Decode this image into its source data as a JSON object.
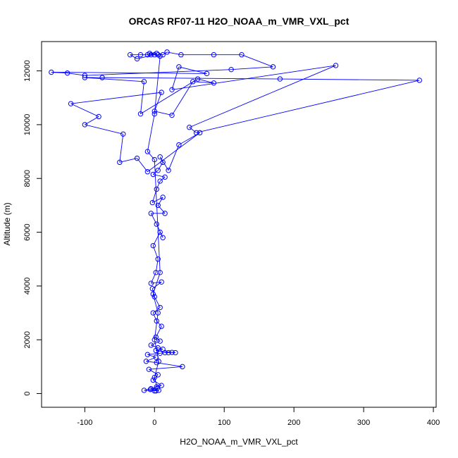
{
  "chart_data": {
    "type": "line",
    "title": "ORCAS RF07-11 H2O_NOAA_m_VMR_VXL_pct",
    "xlabel": "H2O_NOAA_m_VMR_VXL_pct",
    "ylabel": "Altitude (m)",
    "xlim": [
      -162,
      404
    ],
    "ylim": [
      -510,
      13090
    ],
    "x_ticks": [
      -100,
      0,
      100,
      200,
      300,
      400
    ],
    "x_tick_labels": [
      "-100",
      "0",
      "100",
      "200",
      "300",
      "400"
    ],
    "y_ticks": [
      0,
      2000,
      4000,
      6000,
      8000,
      10000,
      12000
    ],
    "y_tick_labels": [
      "0",
      "2000",
      "4000",
      "6000",
      "8000",
      "10000",
      "12000"
    ],
    "grid": false,
    "legend": "none",
    "marker": "open-circle",
    "colors": {
      "series": "#0000ff",
      "axes": "#000000",
      "background": "#ffffff"
    },
    "series": [
      {
        "points": [
          [
            2,
            100
          ],
          [
            -15,
            120
          ],
          [
            -5,
            180
          ],
          [
            3,
            250
          ],
          [
            10,
            300
          ],
          [
            -2,
            500
          ],
          [
            5,
            700
          ],
          [
            -8,
            900
          ],
          [
            40,
            1000
          ],
          [
            3,
            1150
          ],
          [
            -12,
            1200
          ],
          [
            2,
            1350
          ],
          [
            -10,
            1450
          ],
          [
            8,
            1500
          ],
          [
            15,
            1520
          ],
          [
            20,
            1520
          ],
          [
            25,
            1530
          ],
          [
            30,
            1520
          ],
          [
            2,
            1600
          ],
          [
            12,
            1650
          ],
          [
            5,
            1700
          ],
          [
            -5,
            1800
          ],
          [
            8,
            1950
          ],
          [
            2,
            2100
          ],
          [
            10,
            2500
          ],
          [
            3,
            2700
          ],
          [
            -2,
            3000
          ],
          [
            8,
            3200
          ],
          [
            0,
            3600
          ],
          [
            -3,
            3900
          ],
          [
            10,
            4150
          ],
          [
            -5,
            4100
          ],
          [
            2,
            4500
          ],
          [
            5,
            5000
          ],
          [
            -2,
            5500
          ],
          [
            8,
            6000
          ],
          [
            12,
            5800
          ],
          [
            3,
            6300
          ],
          [
            -5,
            6700
          ],
          [
            15,
            6700
          ],
          [
            5,
            7000
          ],
          [
            12,
            7300
          ],
          [
            -3,
            7100
          ],
          [
            3,
            7600
          ],
          [
            8,
            7900
          ],
          [
            15,
            8050
          ],
          [
            -2,
            8150
          ],
          [
            5,
            8300
          ],
          [
            12,
            8600
          ],
          [
            8,
            8800
          ],
          [
            20,
            8300
          ],
          [
            35,
            9250
          ],
          [
            65,
            9700
          ],
          [
            -10,
            8250
          ],
          [
            -25,
            8750
          ],
          [
            -50,
            8600
          ],
          [
            -45,
            9650
          ],
          [
            -100,
            10000
          ],
          [
            -80,
            10300
          ],
          [
            -120,
            10780
          ],
          [
            10,
            11200
          ],
          [
            0,
            10500
          ],
          [
            25,
            10350
          ],
          [
            55,
            11600
          ],
          [
            85,
            11550
          ],
          [
            62,
            11700
          ],
          [
            -20,
            10400
          ],
          [
            -15,
            11600
          ],
          [
            -100,
            11750
          ],
          [
            -75,
            11750
          ],
          [
            180,
            11700
          ],
          [
            380,
            11650
          ],
          [
            60,
            9700
          ],
          [
            50,
            9900
          ],
          [
            260,
            12200
          ],
          [
            25,
            11300
          ],
          [
            35,
            12150
          ],
          [
            75,
            11900
          ],
          [
            -148,
            11950
          ],
          [
            -125,
            11920
          ],
          [
            -100,
            11830
          ],
          [
            110,
            12050
          ],
          [
            170,
            12150
          ],
          [
            125,
            12600
          ],
          [
            85,
            12600
          ],
          [
            38,
            12600
          ],
          [
            18,
            12700
          ],
          [
            12,
            12600
          ],
          [
            5,
            12600
          ],
          [
            -5,
            12600
          ],
          [
            -10,
            12600
          ],
          [
            -20,
            12600
          ],
          [
            -35,
            12600
          ],
          [
            -25,
            12450
          ],
          [
            0,
            12600
          ],
          [
            3,
            12650
          ],
          [
            -7,
            12650
          ],
          [
            8,
            12550
          ],
          [
            0,
            10400
          ],
          [
            -10,
            9000
          ],
          [
            0,
            8700
          ],
          [
            8,
            4500
          ],
          [
            -2,
            3700
          ],
          [
            5,
            3000
          ],
          [
            0,
            2000
          ],
          [
            6,
            1200
          ],
          [
            0,
            600
          ],
          [
            4,
            200
          ],
          [
            -6,
            150
          ],
          [
            6,
            120
          ],
          [
            0,
            100
          ]
        ]
      }
    ]
  }
}
